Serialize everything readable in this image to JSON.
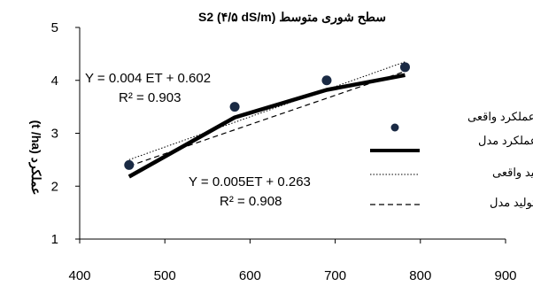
{
  "chart_data": {
    "type": "scatter",
    "title": "سطح شوری متوسط S2 (۴/۵ dS/m)",
    "xlabel": "",
    "ylabel": "عملکرد (t /ha)",
    "xlim": [
      400,
      900
    ],
    "ylim": [
      1,
      5
    ],
    "x_ticks": [
      "400",
      "500",
      "600",
      "700",
      "800",
      "900"
    ],
    "y_ticks": [
      "1",
      "2",
      "3",
      "4",
      "5"
    ],
    "grid": false,
    "legend_position": "right",
    "series": [
      {
        "name": "عملکرد واقعی",
        "kind": "points",
        "color": "#1a2a44",
        "x": [
          458,
          582,
          690,
          782
        ],
        "y": [
          2.4,
          3.5,
          4.0,
          4.25
        ]
      },
      {
        "name": "عملکرد مدل",
        "kind": "solid-thick",
        "color": "#000000",
        "x": [
          458,
          582,
          690,
          782
        ],
        "y": [
          2.18,
          3.3,
          3.82,
          4.1
        ]
      },
      {
        "name": "تابع تولید واقعی",
        "kind": "dotted",
        "color": "#000000",
        "x": [
          458,
          782
        ],
        "y": [
          2.5,
          4.35
        ]
      },
      {
        "name": "تابع تولید مدل",
        "kind": "dashed",
        "color": "#000000",
        "x": [
          458,
          782
        ],
        "y": [
          2.38,
          4.17
        ]
      }
    ],
    "annotations": [
      {
        "id": "eq1",
        "text": "Y = 0.004 ET + 0.602"
      },
      {
        "id": "r1",
        "text": "R² = 0.903"
      },
      {
        "id": "eq2",
        "text": "Y = 0.005ET + 0.263"
      },
      {
        "id": "r2",
        "text": "R² = 0.908"
      }
    ]
  }
}
